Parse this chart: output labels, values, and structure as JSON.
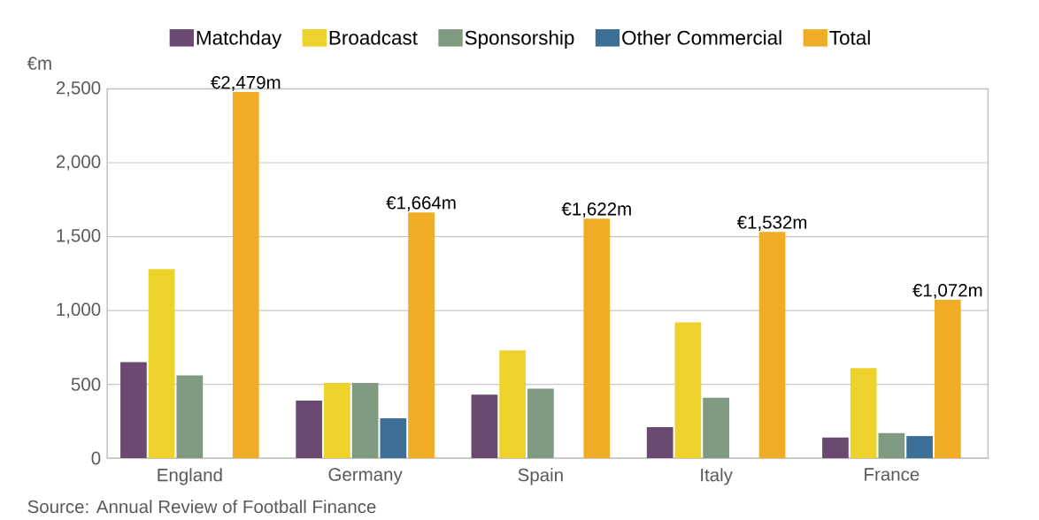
{
  "chart_data": {
    "type": "bar",
    "ylabel": "€m",
    "categories": [
      "England",
      "Germany",
      "Spain",
      "Italy",
      "France"
    ],
    "series": [
      {
        "name": "Matchday",
        "color": "#6b4a72",
        "values": [
          650,
          390,
          430,
          210,
          140
        ]
      },
      {
        "name": "Broadcast",
        "color": "#ecd22a",
        "values": [
          1280,
          510,
          730,
          920,
          610
        ]
      },
      {
        "name": "Sponsorship",
        "color": "#7f9a80",
        "values": [
          560,
          510,
          470,
          410,
          170
        ]
      },
      {
        "name": "Other Commercial",
        "color": "#3d6e96",
        "values": [
          null,
          270,
          null,
          null,
          150
        ]
      },
      {
        "name": "Total",
        "color": "#f0ac25",
        "values": [
          2479,
          1664,
          1622,
          1532,
          1072
        ],
        "value_labels": [
          "€2,479m",
          "€1,664m",
          "€1,622m",
          "€1,532m",
          "€1,072m"
        ]
      }
    ],
    "ylim": [
      0,
      2500
    ],
    "yticks": [
      0,
      500,
      {
        "value": 1000,
        "label": "1,000"
      },
      {
        "value": 1500,
        "label": "1,500"
      },
      {
        "value": 2000,
        "label": "2,000"
      },
      {
        "value": 2500,
        "label": "2,500"
      }
    ],
    "grid": "y",
    "legend": "top",
    "annotations": [
      "Source: Annual Review of Football Finance"
    ]
  }
}
